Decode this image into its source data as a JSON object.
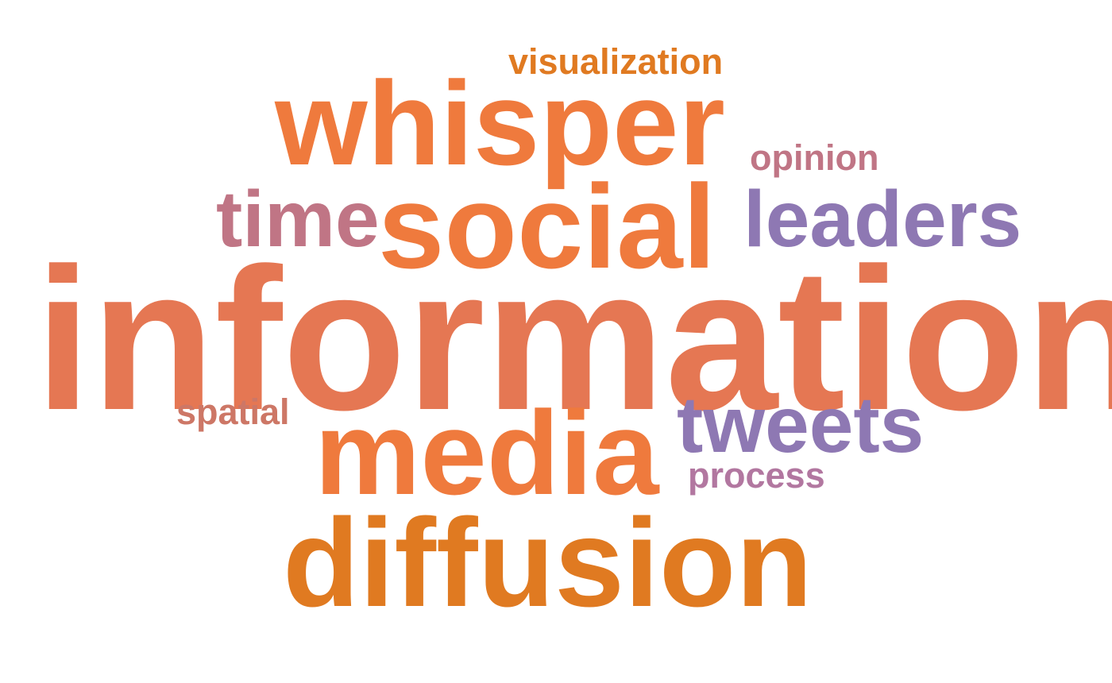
{
  "words": {
    "information": {
      "text": "information",
      "color": "#E57753"
    },
    "diffusion": {
      "text": "diffusion",
      "color": "#E07A21"
    },
    "whisper": {
      "text": "whisper",
      "color": "#EF7A3D"
    },
    "social": {
      "text": "social",
      "color": "#EF7A3D"
    },
    "media": {
      "text": "media",
      "color": "#EF7A3D"
    },
    "leaders": {
      "text": "leaders",
      "color": "#8E78B3"
    },
    "time": {
      "text": "time",
      "color": "#C07585"
    },
    "tweets": {
      "text": "tweets",
      "color": "#8E78B3"
    },
    "opinion": {
      "text": "opinion",
      "color": "#C07585"
    },
    "visualization": {
      "text": "visualization",
      "color": "#E07A21"
    },
    "process": {
      "text": "process",
      "color": "#B277A0"
    },
    "spatial": {
      "text": "spatial",
      "color": "#CD7766"
    }
  }
}
